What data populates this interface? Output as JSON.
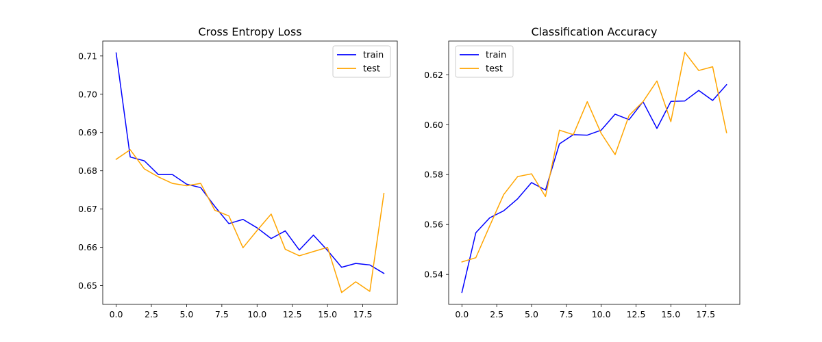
{
  "chart_data": [
    {
      "type": "line",
      "title": "Cross Entropy Loss",
      "xlabel": "",
      "ylabel": "",
      "xlim": [
        -0.95,
        19.95
      ],
      "ylim": [
        0.6451,
        0.7139
      ],
      "xticks": [
        0.0,
        2.5,
        5.0,
        7.5,
        10.0,
        12.5,
        15.0,
        17.5
      ],
      "xtick_labels": [
        "0.0",
        "2.5",
        "5.0",
        "7.5",
        "10.0",
        "12.5",
        "15.0",
        "17.5"
      ],
      "yticks": [
        0.65,
        0.66,
        0.67,
        0.68,
        0.69,
        0.7,
        0.71
      ],
      "ytick_labels": [
        "0.65",
        "0.66",
        "0.67",
        "0.68",
        "0.69",
        "0.70",
        "0.71"
      ],
      "grid": false,
      "legend_position": "top-right",
      "x": [
        0,
        1,
        2,
        3,
        4,
        5,
        6,
        7,
        8,
        9,
        10,
        11,
        12,
        13,
        14,
        15,
        16,
        17,
        18,
        19
      ],
      "series": [
        {
          "name": "train",
          "color": "#0000ff",
          "values": [
            0.7108,
            0.6836,
            0.6826,
            0.679,
            0.679,
            0.6765,
            0.6756,
            0.6707,
            0.6662,
            0.6673,
            0.6651,
            0.6623,
            0.6643,
            0.6593,
            0.6632,
            0.6592,
            0.6548,
            0.6558,
            0.6554,
            0.6532
          ]
        },
        {
          "name": "test",
          "color": "#ffa500",
          "values": [
            0.683,
            0.6855,
            0.6805,
            0.6784,
            0.6767,
            0.6761,
            0.6767,
            0.6697,
            0.6682,
            0.6599,
            0.6644,
            0.6687,
            0.6595,
            0.6578,
            0.6589,
            0.66,
            0.6482,
            0.651,
            0.6485,
            0.6741
          ]
        }
      ]
    },
    {
      "type": "line",
      "title": "Classification Accuracy",
      "xlabel": "",
      "ylabel": "",
      "xlim": [
        -0.95,
        19.95
      ],
      "ylim": [
        0.528,
        0.6335
      ],
      "xticks": [
        0.0,
        2.5,
        5.0,
        7.5,
        10.0,
        12.5,
        15.0,
        17.5
      ],
      "xtick_labels": [
        "0.0",
        "2.5",
        "5.0",
        "7.5",
        "10.0",
        "12.5",
        "15.0",
        "17.5"
      ],
      "yticks": [
        0.54,
        0.56,
        0.58,
        0.6,
        0.62
      ],
      "ytick_labels": [
        "0.54",
        "0.56",
        "0.58",
        "0.60",
        "0.62"
      ],
      "grid": false,
      "legend_position": "top-left",
      "x": [
        0,
        1,
        2,
        3,
        4,
        5,
        6,
        7,
        8,
        9,
        10,
        11,
        12,
        13,
        14,
        15,
        16,
        17,
        18,
        19
      ],
      "series": [
        {
          "name": "train",
          "color": "#0000ff",
          "values": [
            0.5328,
            0.5567,
            0.5627,
            0.5655,
            0.5703,
            0.5768,
            0.5738,
            0.5923,
            0.596,
            0.5958,
            0.5978,
            0.6042,
            0.602,
            0.6092,
            0.5985,
            0.6093,
            0.6095,
            0.6137,
            0.6097,
            0.616
          ]
        },
        {
          "name": "test",
          "color": "#ffa500",
          "values": [
            0.545,
            0.5467,
            0.5595,
            0.572,
            0.5792,
            0.5803,
            0.5712,
            0.5978,
            0.596,
            0.6092,
            0.5965,
            0.588,
            0.6037,
            0.6092,
            0.6175,
            0.6012,
            0.629,
            0.6217,
            0.6232,
            0.5968
          ]
        }
      ]
    }
  ]
}
